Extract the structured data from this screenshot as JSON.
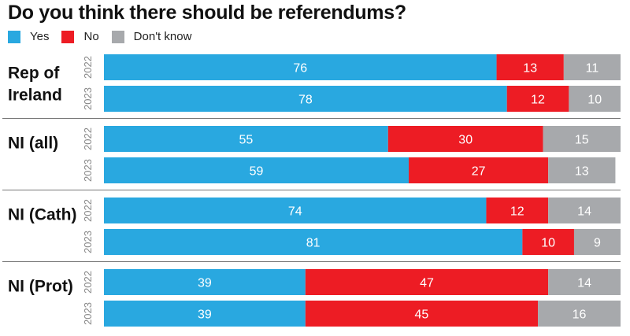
{
  "chart_data": {
    "type": "bar",
    "orientation": "horizontal",
    "stacked": true,
    "title": "Do you think there should be referendums?",
    "legend": [
      {
        "name": "Yes",
        "color": "#29a8e0"
      },
      {
        "name": "No",
        "color": "#ed1c24"
      },
      {
        "name": "Don't know",
        "color": "#a7a9ac"
      }
    ],
    "legend_position": "top-left",
    "groups": [
      {
        "label": "Rep of Ireland",
        "label_lines": [
          "Rep of",
          "Ireland"
        ],
        "rows": [
          {
            "year": "2022",
            "values": [
              76,
              13,
              11
            ]
          },
          {
            "year": "2023",
            "values": [
              78,
              12,
              10
            ]
          }
        ]
      },
      {
        "label": "NI (all)",
        "label_lines": [
          "NI (all)"
        ],
        "rows": [
          {
            "year": "2022",
            "values": [
              55,
              30,
              15
            ]
          },
          {
            "year": "2023",
            "values": [
              59,
              27,
              13
            ]
          }
        ]
      },
      {
        "label": "NI (Cath)",
        "label_lines": [
          "NI (Cath)"
        ],
        "rows": [
          {
            "year": "2022",
            "values": [
              74,
              12,
              14
            ]
          },
          {
            "year": "2023",
            "values": [
              81,
              10,
              9
            ]
          }
        ]
      },
      {
        "label": "NI (Prot)",
        "label_lines": [
          "NI (Prot)"
        ],
        "rows": [
          {
            "year": "2022",
            "values": [
              39,
              47,
              14
            ]
          },
          {
            "year": "2023",
            "values": [
              39,
              45,
              16
            ]
          }
        ]
      }
    ],
    "xlim": [
      0,
      100
    ]
  }
}
